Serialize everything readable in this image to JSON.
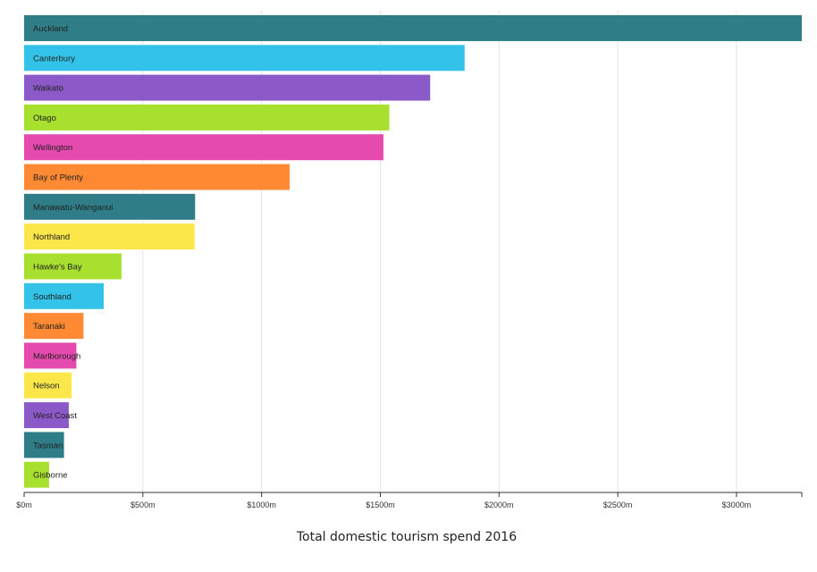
{
  "chart_data": {
    "type": "bar",
    "orientation": "horizontal",
    "title": "Total domestic tourism spend 2016",
    "xlim": [
      0,
      3275
    ],
    "x_ticks": [
      {
        "value": 0,
        "label": "$0m"
      },
      {
        "value": 500,
        "label": "$500m"
      },
      {
        "value": 1000,
        "label": "$1000m"
      },
      {
        "value": 1500,
        "label": "$1500m"
      },
      {
        "value": 2000,
        "label": "$2000m"
      },
      {
        "value": 2500,
        "label": "$2500m"
      },
      {
        "value": 3000,
        "label": "$3000m"
      }
    ],
    "grid": true,
    "categories": [
      "Auckland",
      "Canterbury",
      "Waikato",
      "Otago",
      "Wellington",
      "Bay of Plenty",
      "Manawatu-Wanganui",
      "Northland",
      "Hawke's Bay",
      "Southland",
      "Taranaki",
      "Marlborough",
      "Nelson",
      "West Coast",
      "Tasman",
      "Gisborne"
    ],
    "values": [
      3275,
      1855,
      1710,
      1538,
      1513,
      1118,
      720,
      718,
      410,
      335,
      250,
      220,
      200,
      188,
      168,
      105
    ],
    "colors": [
      "#2e7d87",
      "#33c3e8",
      "#8b5ac8",
      "#a8e030",
      "#e54aae",
      "#ff8a33",
      "#2e7d87",
      "#fbe74a",
      "#a8e030",
      "#33c3e8",
      "#ff8a33",
      "#e54aae",
      "#fbe74a",
      "#8b5ac8",
      "#2e7d87",
      "#a8e030"
    ]
  }
}
